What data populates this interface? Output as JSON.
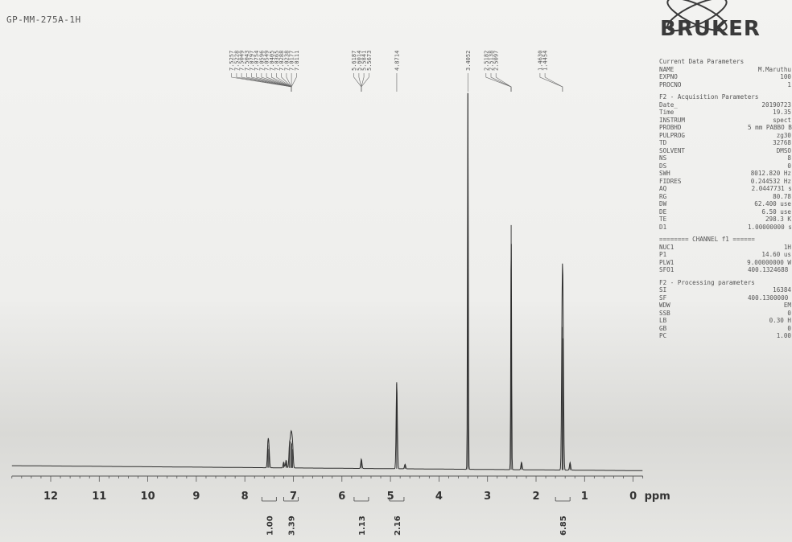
{
  "title": "GP-MM-275A-1H",
  "brand": "BRUKER",
  "colors": {
    "ink": "#3a3a3a",
    "trace": "#2e2e2e",
    "label": "#555555",
    "integral": "#444444"
  },
  "params": {
    "current": {
      "heading": "Current Data Parameters",
      "rows": [
        {
          "key": "NAME",
          "value": "M.Maruthu"
        },
        {
          "key": "EXPNO",
          "value": "100"
        },
        {
          "key": "PROCNO",
          "value": "1"
        }
      ]
    },
    "acquisition": {
      "heading": "F2 - Acquisition Parameters",
      "rows": [
        {
          "key": "Date_",
          "value": "20190723"
        },
        {
          "key": "Time",
          "value": "19.35"
        },
        {
          "key": "INSTRUM",
          "value": "spect"
        },
        {
          "key": "PROBHD",
          "value": "5 mm PABBO BB-"
        },
        {
          "key": "PULPROG",
          "value": "zg30"
        },
        {
          "key": "TD",
          "value": "32768"
        },
        {
          "key": "SOLVENT",
          "value": "DMSO"
        },
        {
          "key": "NS",
          "value": "8"
        },
        {
          "key": "DS",
          "value": "0"
        },
        {
          "key": "SWH",
          "value": "8012.820 Hz"
        },
        {
          "key": "FIDRES",
          "value": "0.244532 Hz"
        },
        {
          "key": "AQ",
          "value": "2.0447731 sec"
        },
        {
          "key": "RG",
          "value": "80.78"
        },
        {
          "key": "DW",
          "value": "62.400 use"
        },
        {
          "key": "DE",
          "value": "6.50 use"
        },
        {
          "key": "TE",
          "value": "298.3 K"
        },
        {
          "key": "D1",
          "value": "1.00000000 sec"
        }
      ]
    },
    "channel": {
      "heading": "======== CHANNEL f1 ======",
      "rows": [
        {
          "key": "NUC1",
          "value": "1H"
        },
        {
          "key": "P1",
          "value": "14.60 us"
        },
        {
          "key": "PLW1",
          "value": "9.00000000 W"
        },
        {
          "key": "SFO1",
          "value": "400.1324688 MH"
        }
      ]
    },
    "processing": {
      "heading": "F2 - Processing parameters",
      "rows": [
        {
          "key": "SI",
          "value": "16384"
        },
        {
          "key": "SF",
          "value": "400.1300000 MH"
        },
        {
          "key": "WDW",
          "value": "EM"
        },
        {
          "key": "SSB",
          "value": "0"
        },
        {
          "key": "LB",
          "value": "0.30 H"
        },
        {
          "key": "GB",
          "value": "0"
        },
        {
          "key": "PC",
          "value": "1.00"
        }
      ]
    }
  },
  "chart_data": {
    "type": "line",
    "title": "GP-MM-275A-1H",
    "xlabel": "ppm",
    "xlim": [
      12.8,
      -0.2
    ],
    "x_reversed": true,
    "ticks": [
      "12",
      "11",
      "10",
      "9",
      "8",
      "7",
      "6",
      "5",
      "4",
      "3",
      "2",
      "1",
      "0"
    ],
    "peak_labels": [
      {
        "group": "aromatic",
        "values": [
          "7.5257",
          "7.5228",
          "7.5049",
          "7.5043",
          "7.0797",
          "7.0754",
          "7.0596",
          "7.0549",
          "7.0405",
          "7.0365",
          "7.0288",
          "7.0238",
          "7.0177",
          "7.0111"
        ],
        "target": 7.04
      },
      {
        "group": "nh",
        "values": [
          "5.6187",
          "5.6014",
          "5.5841",
          "5.5673"
        ],
        "target": 5.6
      },
      {
        "group": "single",
        "values": [
          "4.8714"
        ],
        "target": 4.87
      },
      {
        "group": "single",
        "values": [
          "3.4052"
        ],
        "target": 3.405
      },
      {
        "group": "dmso",
        "values": [
          "2.5182",
          "2.5138",
          "2.5097"
        ],
        "target": 2.514
      },
      {
        "group": "tbu",
        "values": [
          "1.4630",
          "1.4454"
        ],
        "target": 1.455
      }
    ],
    "peaks": [
      {
        "ppm": 7.525,
        "height": 0.06
      },
      {
        "ppm": 7.505,
        "height": 0.05
      },
      {
        "ppm": 7.2,
        "height": 0.015
      },
      {
        "ppm": 7.15,
        "height": 0.02
      },
      {
        "ppm": 7.08,
        "height": 0.06
      },
      {
        "ppm": 7.055,
        "height": 0.07
      },
      {
        "ppm": 7.035,
        "height": 0.065
      },
      {
        "ppm": 7.015,
        "height": 0.05
      },
      {
        "ppm": 5.6,
        "height": 0.025
      },
      {
        "ppm": 4.871,
        "height": 0.23
      },
      {
        "ppm": 4.7,
        "height": 0.012
      },
      {
        "ppm": 3.405,
        "height": 1.0
      },
      {
        "ppm": 2.513,
        "height": 0.65
      },
      {
        "ppm": 2.3,
        "height": 0.02
      },
      {
        "ppm": 1.463,
        "height": 0.38
      },
      {
        "ppm": 1.445,
        "height": 0.35
      },
      {
        "ppm": 1.3,
        "height": 0.02
      }
    ],
    "integrals": [
      {
        "ppm": 7.5,
        "value": "1.00"
      },
      {
        "ppm": 7.05,
        "value": "3.39"
      },
      {
        "ppm": 5.6,
        "value": "1.13"
      },
      {
        "ppm": 4.87,
        "value": "2.16"
      },
      {
        "ppm": 1.45,
        "value": "6.85"
      }
    ]
  }
}
